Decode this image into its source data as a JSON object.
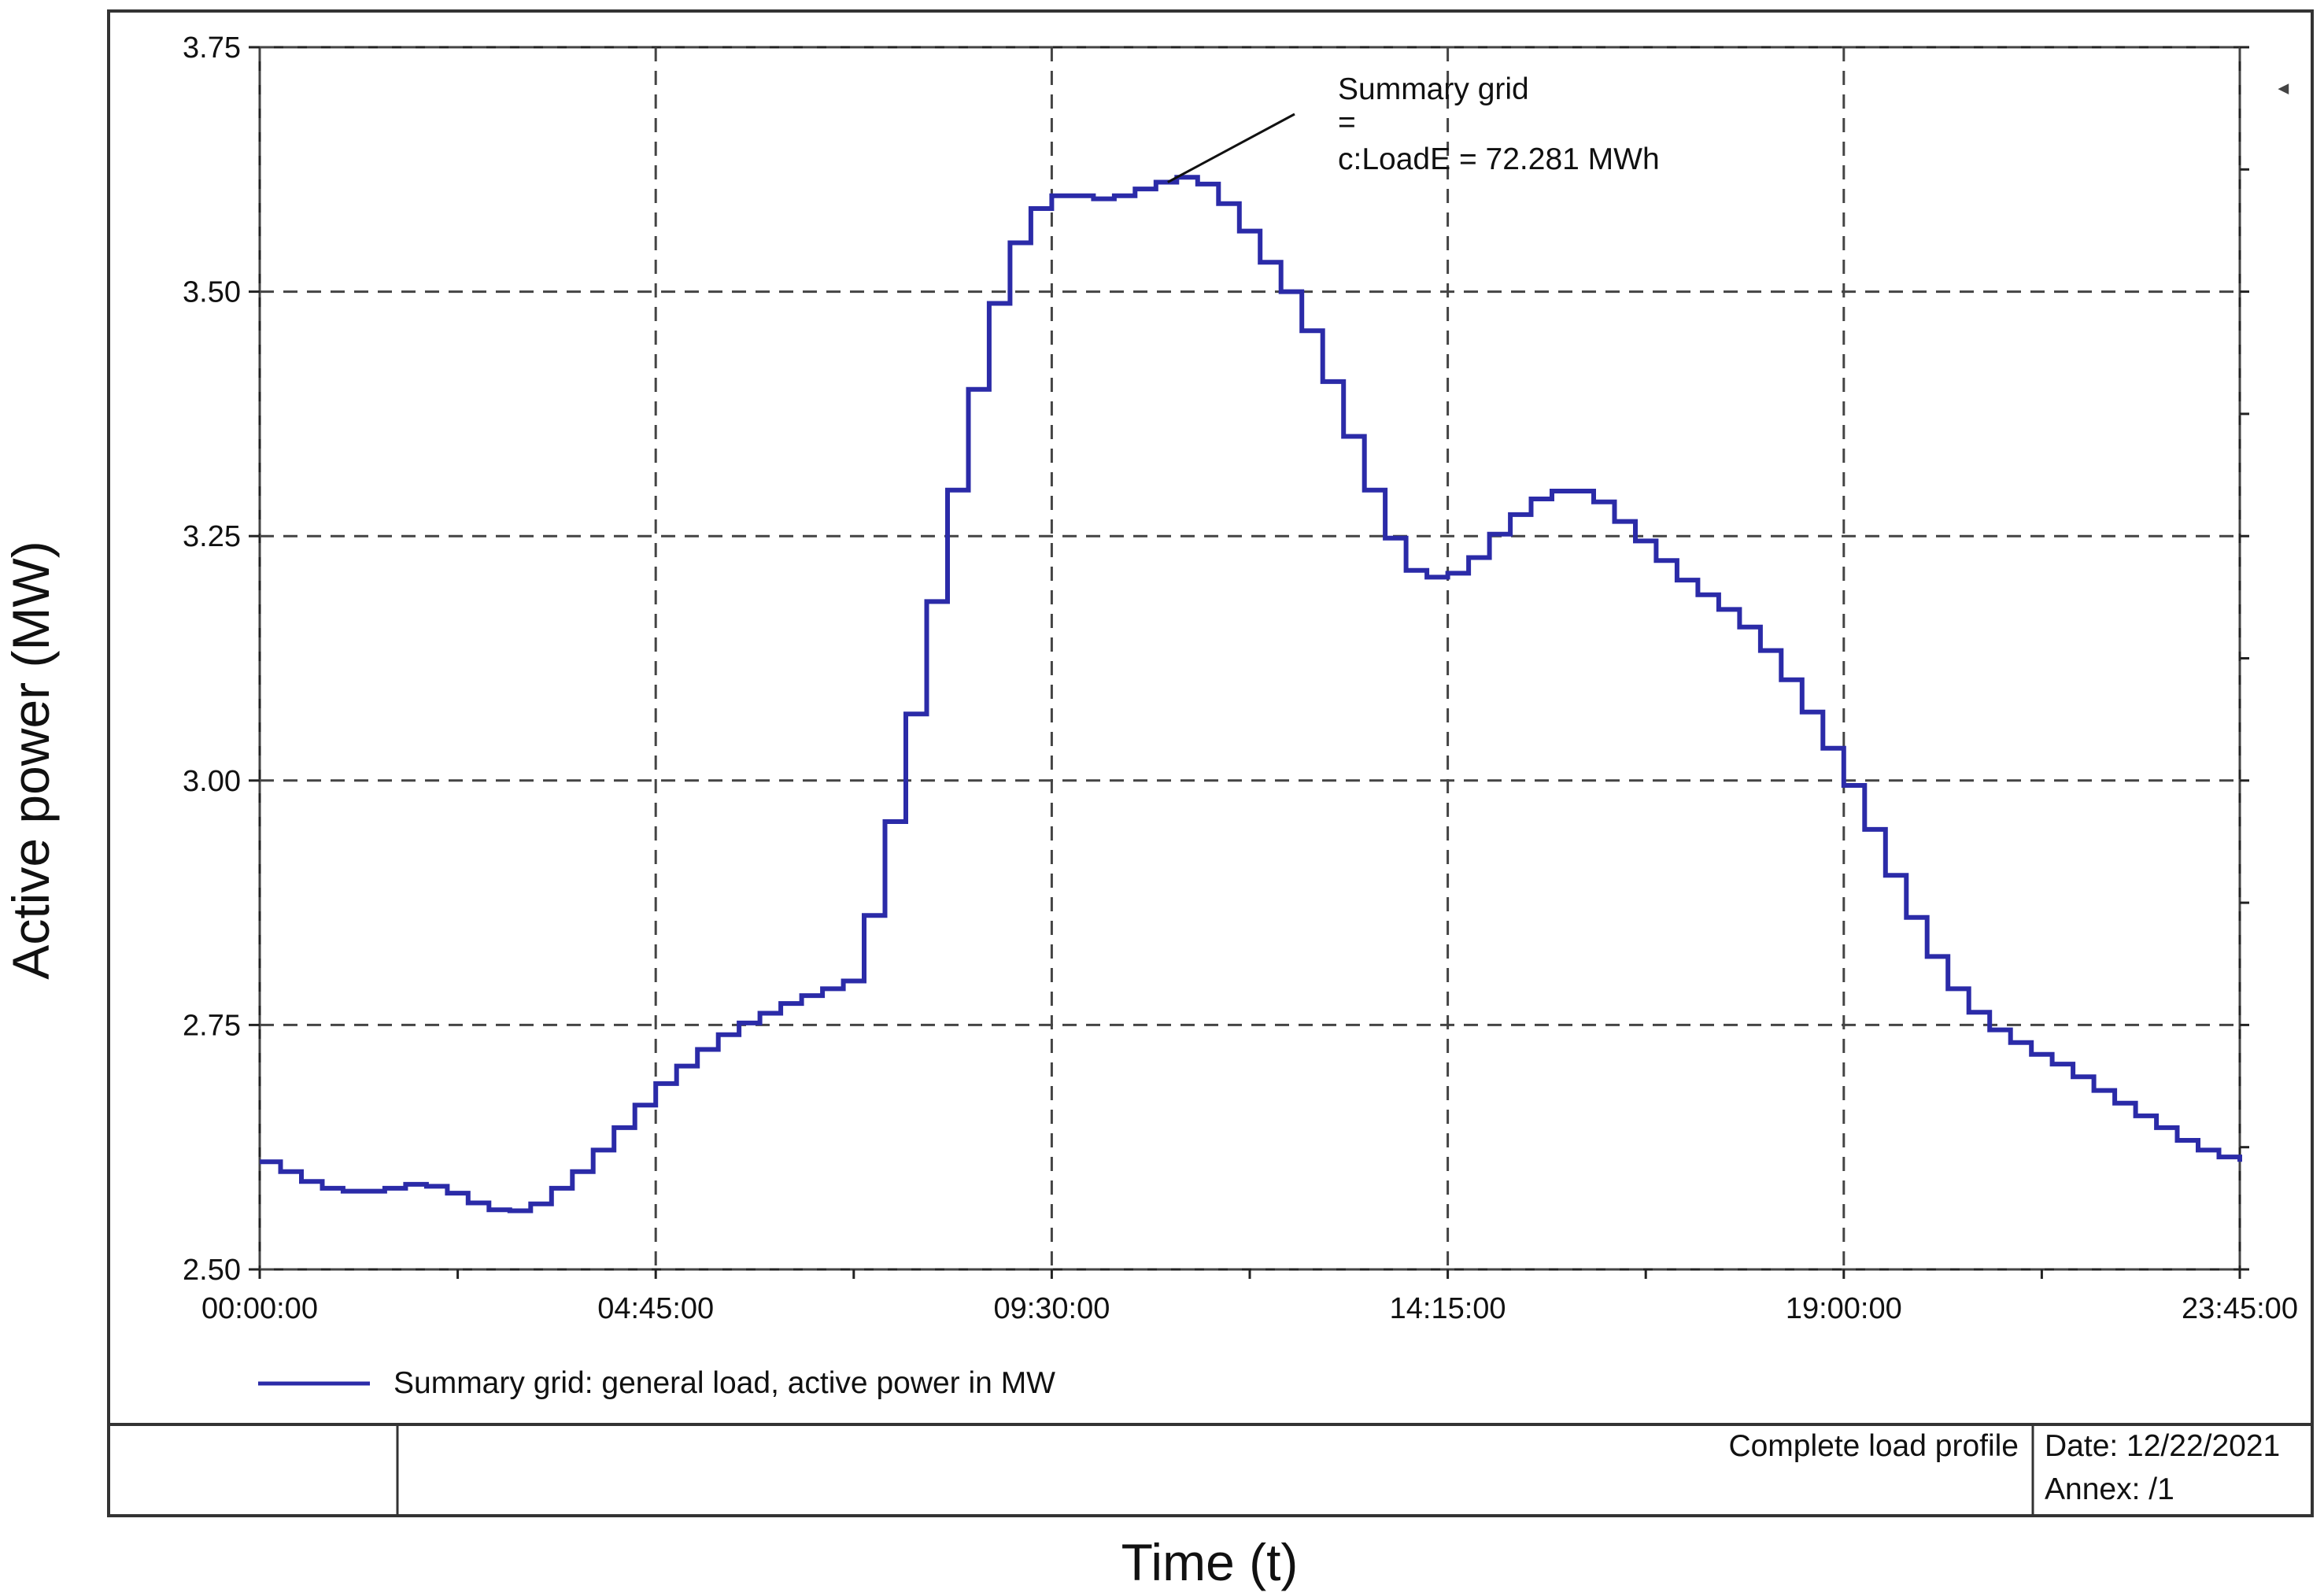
{
  "chart_data": {
    "type": "line",
    "title": "",
    "xlabel": "Time (t)",
    "ylabel": "Active power (MW)",
    "ylim": [
      2.5,
      3.75
    ],
    "yticks": [
      "2.50",
      "2.75",
      "3.00",
      "3.25",
      "3.50",
      "3.75"
    ],
    "xticks": [
      "00:00:00",
      "04:45:00",
      "09:30:00",
      "14:15:00",
      "19:00:00",
      "23:45:00"
    ],
    "xlim": [
      "00:00:00",
      "23:45:00"
    ],
    "grid": true,
    "step": true,
    "colors": {
      "series": "#2b2ba8",
      "grid": "#444444",
      "frame": "#333333"
    },
    "series": [
      {
        "name": "Summary grid: general load, active power in MW",
        "x": [
          "00:00",
          "00:15",
          "00:30",
          "00:45",
          "01:00",
          "01:15",
          "01:30",
          "01:45",
          "02:00",
          "02:15",
          "02:30",
          "02:45",
          "03:00",
          "03:15",
          "03:30",
          "03:45",
          "04:00",
          "04:15",
          "04:30",
          "04:45",
          "05:00",
          "05:15",
          "05:30",
          "05:45",
          "06:00",
          "06:15",
          "06:30",
          "06:45",
          "07:00",
          "07:15",
          "07:30",
          "07:45",
          "08:00",
          "08:15",
          "08:30",
          "08:45",
          "09:00",
          "09:15",
          "09:30",
          "09:45",
          "10:00",
          "10:15",
          "10:30",
          "10:45",
          "11:00",
          "11:15",
          "11:30",
          "11:45",
          "12:00",
          "12:15",
          "12:30",
          "12:45",
          "13:00",
          "13:15",
          "13:30",
          "13:45",
          "14:00",
          "14:15",
          "14:30",
          "14:45",
          "15:00",
          "15:15",
          "15:30",
          "15:45",
          "16:00",
          "16:15",
          "16:30",
          "16:45",
          "17:00",
          "17:15",
          "17:30",
          "17:45",
          "18:00",
          "18:15",
          "18:30",
          "18:45",
          "19:00",
          "19:15",
          "19:30",
          "19:45",
          "20:00",
          "20:15",
          "20:30",
          "20:45",
          "21:00",
          "21:15",
          "21:30",
          "21:45",
          "22:00",
          "22:15",
          "22:30",
          "22:45",
          "23:00",
          "23:15",
          "23:30",
          "23:45"
        ],
        "values": [
          2.61,
          2.6,
          2.59,
          2.583,
          2.58,
          2.58,
          2.583,
          2.587,
          2.585,
          2.578,
          2.568,
          2.561,
          2.56,
          2.567,
          2.583,
          2.6,
          2.622,
          2.645,
          2.668,
          2.69,
          2.708,
          2.725,
          2.74,
          2.752,
          2.762,
          2.772,
          2.78,
          2.787,
          2.795,
          2.862,
          2.958,
          3.068,
          3.183,
          3.297,
          3.4,
          3.488,
          3.55,
          3.585,
          3.598,
          3.598,
          3.595,
          3.598,
          3.605,
          3.612,
          3.617,
          3.61,
          3.59,
          3.562,
          3.53,
          3.5,
          3.46,
          3.408,
          3.352,
          3.297,
          3.248,
          3.215,
          3.208,
          3.212,
          3.228,
          3.252,
          3.272,
          3.288,
          3.296,
          3.296,
          3.285,
          3.265,
          3.245,
          3.225,
          3.205,
          3.19,
          3.175,
          3.157,
          3.133,
          3.103,
          3.07,
          3.033,
          2.995,
          2.95,
          2.903,
          2.86,
          2.82,
          2.787,
          2.763,
          2.745,
          2.732,
          2.72,
          2.71,
          2.697,
          2.683,
          2.67,
          2.657,
          2.645,
          2.632,
          2.622,
          2.615,
          2.61
        ]
      }
    ],
    "annotation": {
      "line1": "Summary grid",
      "line2": "=",
      "line3": "c:LoadE = 72.281 MWh",
      "points_to": "10:45"
    },
    "legend_position": "bottom-left"
  },
  "footer": {
    "title": "Complete load profile",
    "date": "Date: 12/22/2021",
    "annex": "Annex: /1"
  }
}
